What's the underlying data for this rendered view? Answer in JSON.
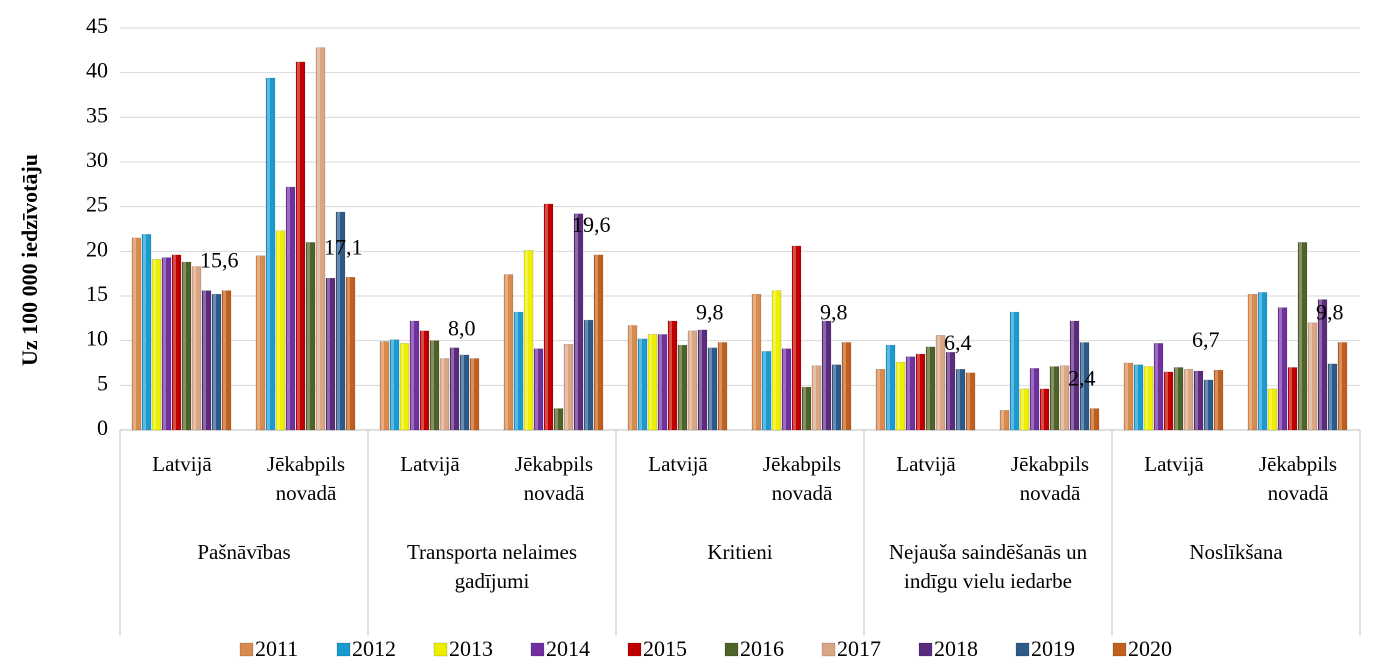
{
  "chart_data": {
    "type": "bar",
    "y_axis_label": "Uz 100 000 iedzīvotāju",
    "categories": [
      "Latvijā",
      "Jēkabpils novadā",
      "Latvijā",
      "Jēkabpils novadā",
      "Latvijā",
      "Jēkabpils novadā",
      "Latvijā",
      "Jēkabpils novadā",
      "Latvijā",
      "Jēkabpils novadā"
    ],
    "groups": [
      "Pašnāvības",
      "Transporta nelaimes gadījumi",
      "Kritieni",
      "Nejauša saindēšanās un indīgu vielu iedarbe",
      "Noslīkšana"
    ],
    "series": [
      {
        "name": "2011",
        "color": "#d98a4e",
        "values": [
          21.5,
          19.5,
          9.9,
          17.4,
          11.7,
          15.2,
          6.8,
          2.2,
          7.5,
          15.2
        ]
      },
      {
        "name": "2012",
        "color": "#1a9bd0",
        "values": [
          21.9,
          39.4,
          10.1,
          13.2,
          10.2,
          8.8,
          9.5,
          13.2,
          7.3,
          15.4
        ]
      },
      {
        "name": "2013",
        "color": "#eeee00",
        "values": [
          19.1,
          22.3,
          9.7,
          20.1,
          10.7,
          15.6,
          7.6,
          4.6,
          7.1,
          4.6
        ]
      },
      {
        "name": "2014",
        "color": "#7030a0",
        "values": [
          19.3,
          27.2,
          12.2,
          9.1,
          10.7,
          9.1,
          8.2,
          6.9,
          9.7,
          13.7
        ]
      },
      {
        "name": "2015",
        "color": "#c00000",
        "values": [
          19.6,
          41.2,
          11.1,
          25.3,
          12.2,
          20.6,
          8.5,
          4.6,
          6.5,
          7.0
        ]
      },
      {
        "name": "2016",
        "color": "#4f6228",
        "values": [
          18.8,
          21.0,
          10.0,
          2.4,
          9.5,
          4.8,
          9.3,
          7.1,
          7.0,
          21.0
        ]
      },
      {
        "name": "2017",
        "color": "#d9a584",
        "values": [
          18.3,
          42.8,
          8.0,
          9.6,
          11.1,
          7.2,
          10.6,
          7.2,
          6.8,
          12.0
        ]
      },
      {
        "name": "2018",
        "color": "#5b2c7e",
        "values": [
          15.6,
          17.0,
          9.2,
          24.2,
          11.2,
          12.2,
          8.7,
          12.2,
          6.6,
          14.6
        ]
      },
      {
        "name": "2019",
        "color": "#2e5a8a",
        "values": [
          15.2,
          24.4,
          8.4,
          12.3,
          9.2,
          7.3,
          6.8,
          9.8,
          5.6,
          7.4
        ]
      },
      {
        "name": "2020",
        "color": "#c0601c",
        "values": [
          15.6,
          17.1,
          8.0,
          19.6,
          9.8,
          9.8,
          6.4,
          2.4,
          6.7,
          9.8
        ],
        "value_labels": [
          "15,6",
          "17,1",
          "8,0",
          "19,6",
          "9,8",
          "9,8",
          "6,4",
          "2,4",
          "6,7",
          "9,8"
        ]
      }
    ],
    "ylim": [
      0,
      45
    ],
    "yticks": [
      0,
      5,
      10,
      15,
      20,
      25,
      30,
      35,
      40,
      45
    ],
    "legend": "bottom"
  }
}
